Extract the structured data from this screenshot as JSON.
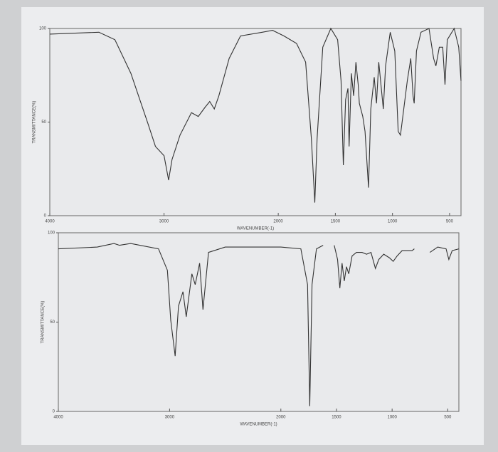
{
  "chart_data": [
    {
      "type": "line",
      "ylabel": "TRANSMITTANCE(%)",
      "xlabel": "WAVENUMBER(-1)",
      "x": [
        4000,
        3570,
        3430,
        3290,
        3140,
        3075,
        3000,
        2960,
        2930,
        2860,
        2760,
        2700,
        2640,
        2600,
        2560,
        2520,
        2430,
        2330,
        2140,
        2050,
        1950,
        1840,
        1760,
        1710,
        1680,
        1660,
        1610,
        1540,
        1480,
        1450,
        1430,
        1410,
        1390,
        1380,
        1360,
        1340,
        1320,
        1300,
        1290,
        1260,
        1240,
        1210,
        1190,
        1160,
        1140,
        1120,
        1080,
        1060,
        1020,
        980,
        950,
        930,
        870,
        840,
        820,
        810,
        790,
        750,
        680,
        640,
        620,
        590,
        560,
        540,
        520,
        460,
        420,
        400
      ],
      "series": [
        {
          "color": "#333333",
          "values": [
            97,
            98,
            94,
            76,
            49,
            37,
            32,
            19,
            30,
            43,
            55,
            53,
            58,
            61,
            57,
            64,
            84,
            96,
            98,
            99,
            96,
            92,
            82,
            41,
            7,
            41,
            90,
            100,
            94,
            72,
            27,
            62,
            68,
            37,
            76,
            64,
            82,
            70,
            60,
            53,
            45,
            15,
            57,
            74,
            60,
            82,
            57,
            80,
            98,
            88,
            45,
            43,
            72,
            84,
            64,
            60,
            88,
            98,
            100,
            84,
            80,
            90,
            90,
            70,
            94,
            100,
            90,
            72
          ]
        }
      ],
      "xlim": [
        4000,
        400
      ],
      "xticks": [
        4000,
        3000,
        2000,
        1500,
        1000,
        500
      ],
      "ylim": [
        0,
        100
      ],
      "yticks": [
        0,
        50,
        100
      ]
    },
    {
      "type": "line",
      "ylabel": "TRANSMITTANCE(%)",
      "xlabel": "WAVENUMBER(-1)",
      "x": [
        4000,
        3650,
        3500,
        3450,
        3350,
        3100,
        3020,
        2990,
        2950,
        2920,
        2880,
        2850,
        2800,
        2770,
        2730,
        2700,
        2650,
        2500,
        2000,
        1820,
        1760,
        1740,
        1720,
        1680,
        1620,
        1570,
        1520,
        1490,
        1470,
        1450,
        1430,
        1410,
        1390,
        1360,
        1320,
        1270,
        1230,
        1190,
        1150,
        1120,
        1075,
        1025,
        990,
        955,
        910,
        820,
        800,
        730,
        660,
        590,
        515,
        490,
        460,
        400
      ],
      "series": [
        {
          "color": "#333333",
          "values": [
            91,
            92,
            94,
            93,
            94,
            91,
            79,
            51,
            31,
            59,
            67,
            53,
            77,
            71,
            83,
            57,
            89,
            92,
            92,
            91,
            71,
            3,
            71,
            91,
            93,
            null,
            93,
            85,
            69,
            83,
            73,
            81,
            77,
            87,
            89,
            89,
            88,
            89,
            80,
            85,
            88,
            86,
            84,
            87,
            90,
            90,
            91,
            null,
            89,
            92,
            91,
            85,
            90,
            91
          ]
        }
      ],
      "xlim": [
        4000,
        400
      ],
      "xticks": [
        4000,
        3000,
        2000,
        1500,
        1000,
        500
      ],
      "ylim": [
        0,
        100
      ],
      "yticks": [
        0,
        50,
        100
      ]
    }
  ]
}
